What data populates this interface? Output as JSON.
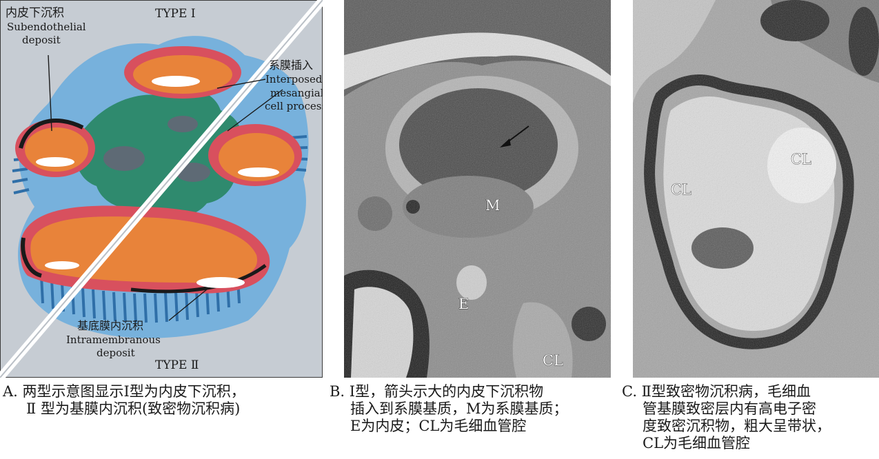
{
  "panel_a": {
    "type_1": "TYPE Ⅰ",
    "type_2": "TYPE Ⅱ",
    "subendothelial_cn": "内皮下沉积",
    "subendothelial_en_1": "Subendothelial",
    "subendothelial_en_2": "deposit",
    "interposed_cn": "系膜插入",
    "interposed_en_1": "Interposed",
    "interposed_en_2": "mesangial",
    "interposed_en_3": "cell process",
    "intramembranous_cn": "基底膜内沉积",
    "intramembranous_en_1": "Intramembranous",
    "intramembranous_en_2": "deposit"
  },
  "panel_b": {
    "label_m": "M",
    "label_e": "E",
    "label_cl": "CL"
  },
  "panel_c": {
    "label_cl_left": "CL",
    "label_cl_right": "CL"
  },
  "captions": {
    "a_line1": "A. 两型示意图显示Ⅰ型为内皮下沉积，",
    "a_line2": "Ⅱ 型为基膜内沉积(致密物沉积病)",
    "b_line1": "B. Ⅰ型，箭头示大的内皮下沉积物",
    "b_line2": "插入到系膜基质，M为系膜基质；",
    "b_line3": "E为内皮；CL为毛细血管腔",
    "c_line1": "C. Ⅱ型致密物沉积病，毛细血",
    "c_line2": "管基膜致密层内有高电子密",
    "c_line3": "度致密沉积物，粗大呈带状，",
    "c_line4": "CL为毛细血管腔"
  },
  "colors": {
    "background_panel_a": "#c9cfd6",
    "mesangium": "#2f8a6e",
    "basement_membrane": "#d8505e",
    "endothelium_orange": "#e8833a",
    "podocyte_blue": "#6aa8d8",
    "em_gray": "#8a8a8a"
  }
}
